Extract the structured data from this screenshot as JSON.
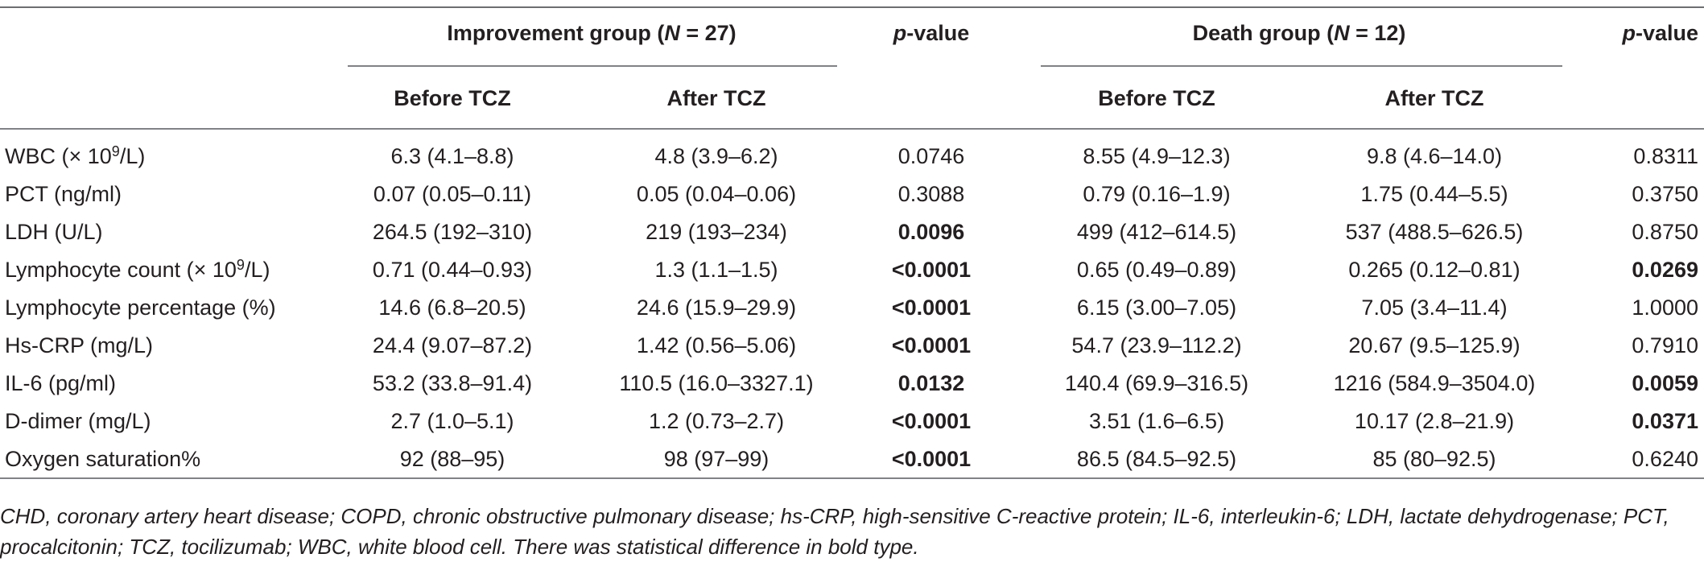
{
  "header": {
    "improvement_group": "Improvement group (N = 27)",
    "improvement_prefix": "Improvement group (",
    "improvement_n": "N",
    "improvement_suffix": " = 27)",
    "death_prefix": "Death group (",
    "death_n": "N",
    "death_suffix": " = 12)",
    "pvalue_p": "p",
    "pvalue_rest": "-value",
    "before_tcz": "Before TCZ",
    "after_tcz": "After TCZ"
  },
  "rows": [
    {
      "label_pre": "WBC (× 10",
      "label_sup": "9",
      "label_post": "/L)",
      "imp_before": "6.3 (4.1–8.8)",
      "imp_after": "4.8 (3.9–6.2)",
      "imp_p": "0.0746",
      "imp_p_bold": false,
      "death_before": "8.55 (4.9–12.3)",
      "death_after": "9.8 (4.6–14.0)",
      "death_p": "0.8311",
      "death_p_bold": false
    },
    {
      "label_pre": "PCT (ng/ml)",
      "label_sup": "",
      "label_post": "",
      "imp_before": "0.07 (0.05–0.11)",
      "imp_after": "0.05 (0.04–0.06)",
      "imp_p": "0.3088",
      "imp_p_bold": false,
      "death_before": "0.79 (0.16–1.9)",
      "death_after": "1.75 (0.44–5.5)",
      "death_p": "0.3750",
      "death_p_bold": false
    },
    {
      "label_pre": "LDH (U/L)",
      "label_sup": "",
      "label_post": "",
      "imp_before": "264.5 (192–310)",
      "imp_after": "219 (193–234)",
      "imp_p": "0.0096",
      "imp_p_bold": true,
      "death_before": "499 (412–614.5)",
      "death_after": "537 (488.5–626.5)",
      "death_p": "0.8750",
      "death_p_bold": false
    },
    {
      "label_pre": "Lymphocyte count (× 10",
      "label_sup": "9",
      "label_post": "/L)",
      "imp_before": "0.71 (0.44–0.93)",
      "imp_after": "1.3 (1.1–1.5)",
      "imp_p": "<0.0001",
      "imp_p_bold": true,
      "death_before": "0.65 (0.49–0.89)",
      "death_after": "0.265 (0.12–0.81)",
      "death_p": "0.0269",
      "death_p_bold": true
    },
    {
      "label_pre": "Lymphocyte percentage (%)",
      "label_sup": "",
      "label_post": "",
      "imp_before": "14.6 (6.8–20.5)",
      "imp_after": "24.6 (15.9–29.9)",
      "imp_p": "<0.0001",
      "imp_p_bold": true,
      "death_before": "6.15 (3.00–7.05)",
      "death_after": "7.05 (3.4–11.4)",
      "death_p": "1.0000",
      "death_p_bold": false
    },
    {
      "label_pre": "Hs-CRP (mg/L)",
      "label_sup": "",
      "label_post": "",
      "imp_before": "24.4 (9.07–87.2)",
      "imp_after": "1.42 (0.56–5.06)",
      "imp_p": "<0.0001",
      "imp_p_bold": true,
      "death_before": "54.7 (23.9–112.2)",
      "death_after": "20.67 (9.5–125.9)",
      "death_p": "0.7910",
      "death_p_bold": false
    },
    {
      "label_pre": "IL-6 (pg/ml)",
      "label_sup": "",
      "label_post": "",
      "imp_before": "53.2 (33.8–91.4)",
      "imp_after": "110.5 (16.0–3327.1)",
      "imp_p": "0.0132",
      "imp_p_bold": true,
      "death_before": "140.4 (69.9–316.5)",
      "death_after": "1216 (584.9–3504.0)",
      "death_p": "0.0059",
      "death_p_bold": true
    },
    {
      "label_pre": "D-dimer (mg/L)",
      "label_sup": "",
      "label_post": "",
      "imp_before": "2.7 (1.0–5.1)",
      "imp_after": "1.2 (0.73–2.7)",
      "imp_p": "<0.0001",
      "imp_p_bold": true,
      "death_before": "3.51 (1.6–6.5)",
      "death_after": "10.17 (2.8–21.9)",
      "death_p": "0.0371",
      "death_p_bold": true
    },
    {
      "label_pre": "Oxygen saturation%",
      "label_sup": "",
      "label_post": "",
      "imp_before": "92 (88–95)",
      "imp_after": "98 (97–99)",
      "imp_p": "<0.0001",
      "imp_p_bold": true,
      "death_before": "86.5 (84.5–92.5)",
      "death_after": "85 (80–92.5)",
      "death_p": "0.6240",
      "death_p_bold": false
    }
  ],
  "footnote": "CHD, coronary artery heart disease; COPD, chronic obstructive pulmonary disease; hs-CRP, high-sensitive C-reactive protein; IL-6, interleukin-6; LDH, lactate dehydrogenase; PCT, procalcitonin; TCZ, tocilizumab; WBC, white blood cell. There was statistical difference in bold type."
}
